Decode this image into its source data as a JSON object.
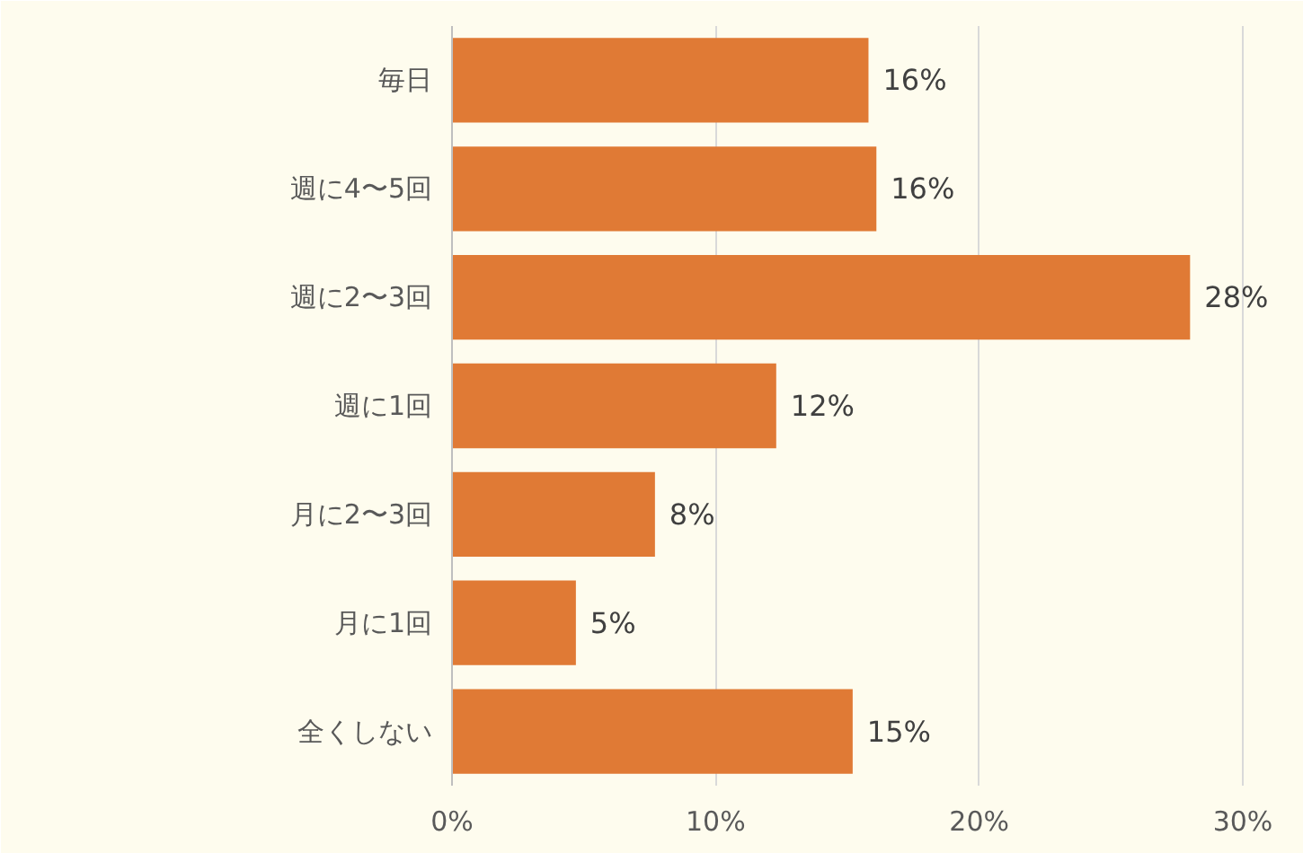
{
  "chart_data": {
    "type": "bar",
    "orientation": "horizontal",
    "categories": [
      "毎日",
      "週に4〜5回",
      "週に2〜3回",
      "週に1回",
      "月に2〜3回",
      "月に1回",
      "全くしない"
    ],
    "values": [
      15.8,
      16.1,
      28.0,
      12.3,
      7.7,
      4.7,
      15.2
    ],
    "value_labels": [
      "16%",
      "16%",
      "28%",
      "12%",
      "8%",
      "5%",
      "15%"
    ],
    "color": "#e07a35",
    "xlim": [
      0,
      31.5
    ],
    "xticks": [
      {
        "value": 0,
        "label": "0%"
      },
      {
        "value": 10,
        "label": "10%"
      },
      {
        "value": 20,
        "label": "20%"
      },
      {
        "value": 30,
        "label": "30%"
      }
    ],
    "grid": "x"
  }
}
